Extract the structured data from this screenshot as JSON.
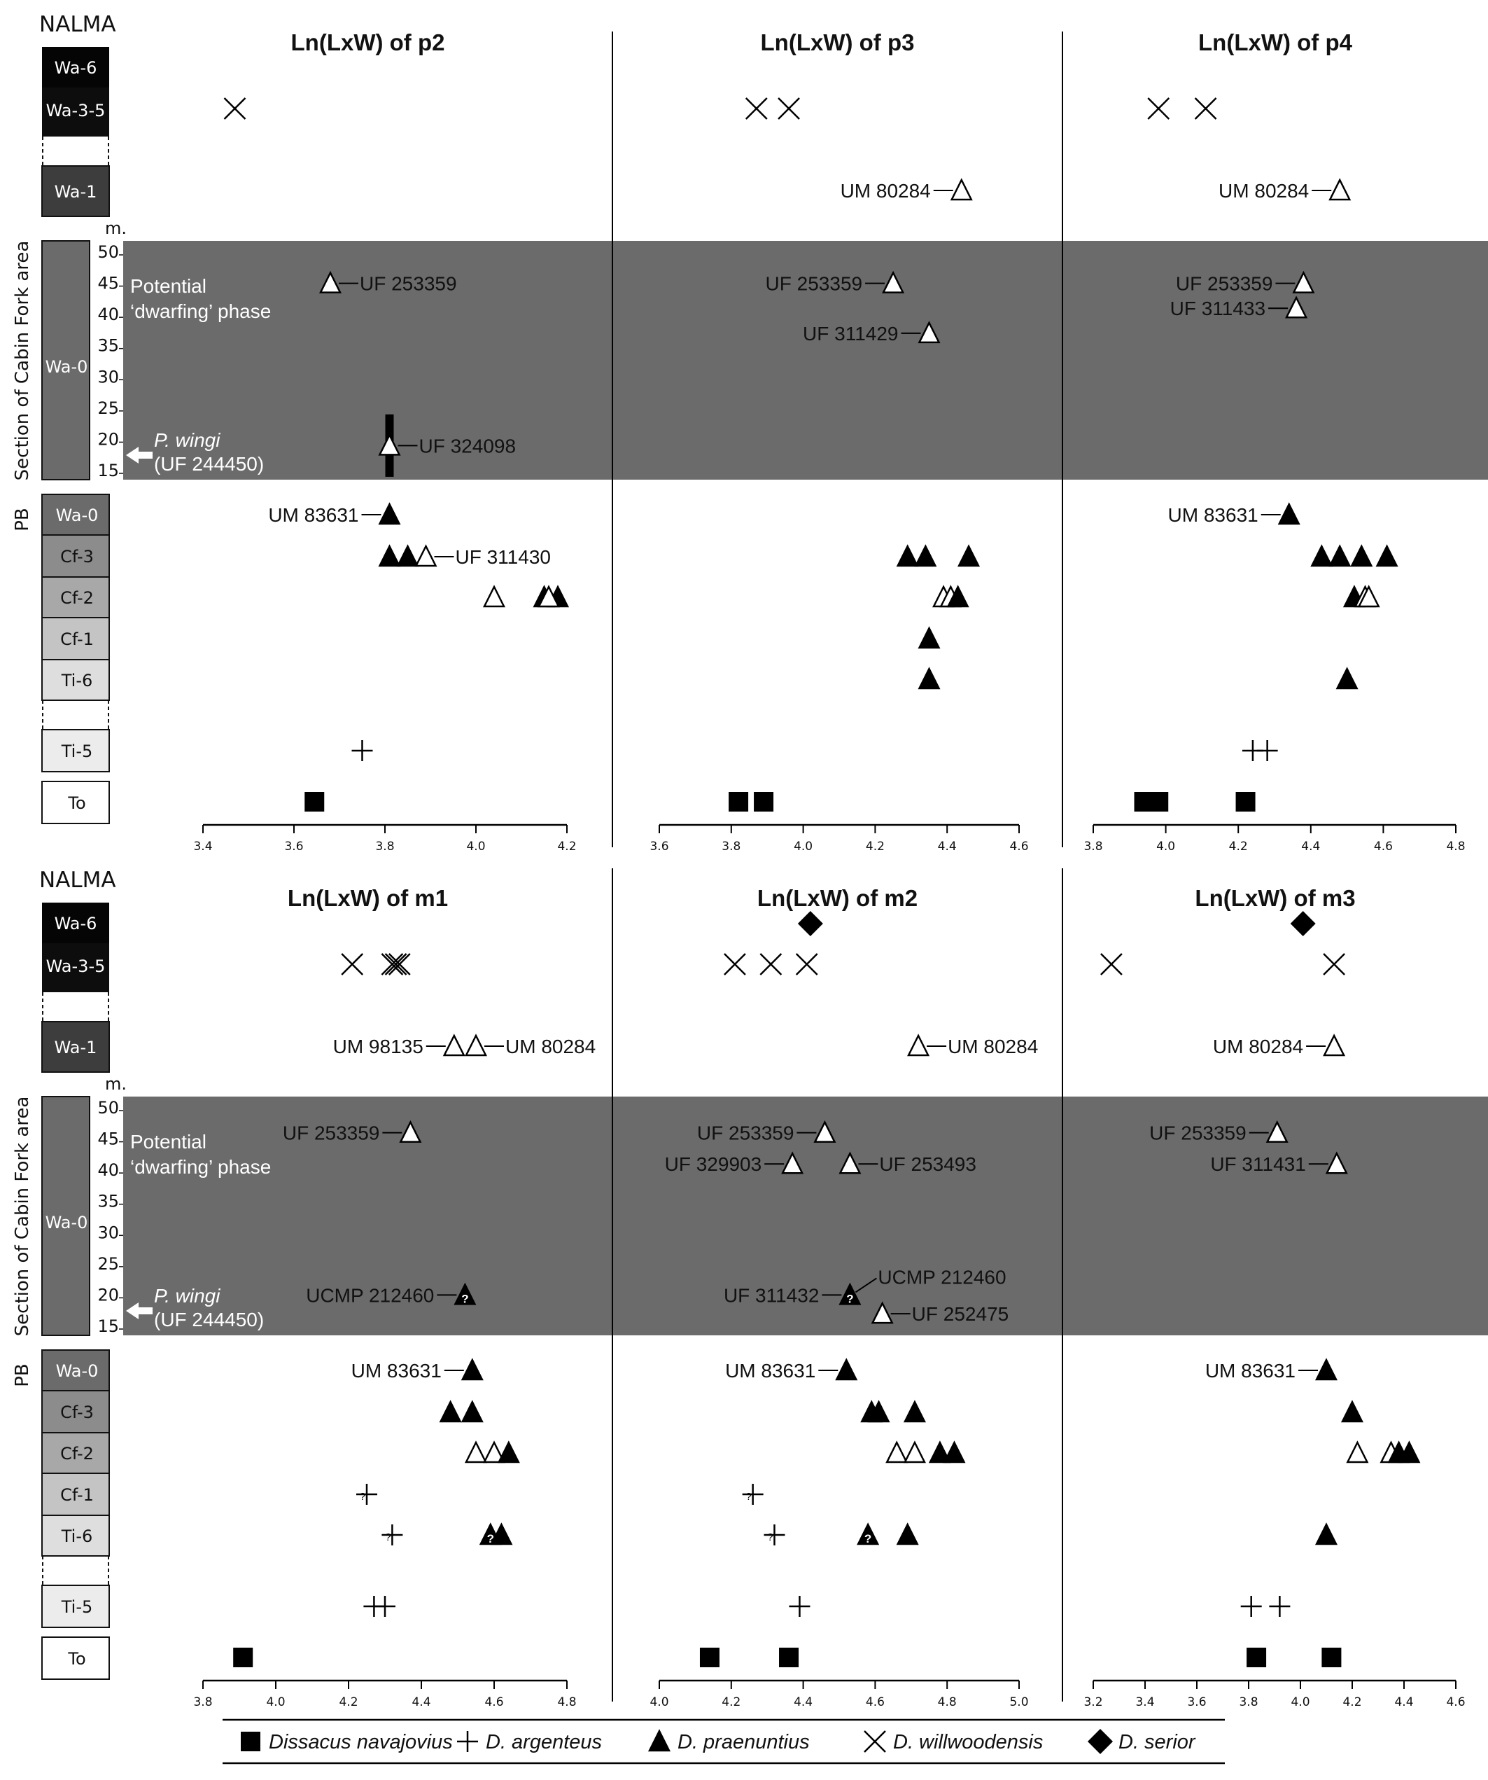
{
  "nalma_label": "NALMA",
  "section_label": "Section of Cabin Fork area",
  "pb_label": "PB",
  "meters_label": "m.",
  "dwarfing_label_1": "Potential",
  "dwarfing_label_2": "‘dwarfing’ phase",
  "pwingi_label_1": "P. wingi",
  "pwingi_label_2": "(UF 244450)",
  "colors": {
    "shade": "#6b6b6b",
    "wa6": "#050505",
    "wa35": "#0d0d0d",
    "wa1": "#3d3d3d",
    "wa0": "#6b6b6b",
    "cf3": "#8c8c8c",
    "cf2": "#a8a8a8",
    "cf1": "#c4c4c4",
    "ti6": "#dedede",
    "ti5": "#ececec",
    "to": "#ffffff"
  },
  "strat_upper": [
    {
      "key": "Wa-6",
      "label": "Wa-6"
    },
    {
      "key": "Wa-3-5",
      "label": "Wa-3-5"
    },
    {
      "key": "Wa-1",
      "label": "Wa-1"
    }
  ],
  "strat_section": {
    "label": "Wa-0",
    "meter_ticks": [
      50,
      45,
      40,
      35,
      30,
      25,
      20,
      15
    ]
  },
  "strat_pb": [
    {
      "key": "Wa-0",
      "label": "Wa-0"
    },
    {
      "key": "Cf-3",
      "label": "Cf-3"
    },
    {
      "key": "Cf-2",
      "label": "Cf-2"
    },
    {
      "key": "Cf-1",
      "label": "Cf-1"
    },
    {
      "key": "Ti-6",
      "label": "Ti-6"
    },
    {
      "key": "Ti-5",
      "label": "Ti-5"
    },
    {
      "key": "To",
      "label": "To"
    }
  ],
  "legend": [
    {
      "symbol": "square",
      "label": "Dissacus navajovius"
    },
    {
      "symbol": "plus",
      "label": "D. argenteus"
    },
    {
      "symbol": "triangle",
      "label": "D. praenuntius"
    },
    {
      "symbol": "cross",
      "label": "D. willwoodensis"
    },
    {
      "symbol": "diamond",
      "label": "D. serior"
    }
  ],
  "chart_data": [
    {
      "type": "scatter",
      "title": "Ln(LxW) of p2",
      "xlim": [
        3.4,
        4.2
      ],
      "xticks": [
        "3.4",
        "3.6",
        "3.8",
        "4.0",
        "4.2"
      ],
      "points": [
        {
          "row": "Wa-3-5",
          "x": 3.47,
          "sym": "cross"
        },
        {
          "row": "sec",
          "m": 45,
          "x": 3.68,
          "sym": "tri-open",
          "label": "UF 253359",
          "side": "right"
        },
        {
          "row": "sec",
          "m": 19,
          "x": 3.81,
          "sym": "tri-open",
          "label": "UF 324098",
          "side": "right",
          "range": [
            14,
            24
          ]
        },
        {
          "row": "Wa-0",
          "x": 3.81,
          "sym": "tri",
          "label": "UM 83631",
          "side": "left"
        },
        {
          "row": "Cf-3",
          "x": 3.81,
          "sym": "tri"
        },
        {
          "row": "Cf-3",
          "x": 3.85,
          "sym": "tri"
        },
        {
          "row": "Cf-3",
          "x": 3.89,
          "sym": "tri-open",
          "label": "UF 311430",
          "side": "right"
        },
        {
          "row": "Cf-2",
          "x": 4.04,
          "sym": "tri-open"
        },
        {
          "row": "Cf-2",
          "x": 4.15,
          "sym": "tri"
        },
        {
          "row": "Cf-2",
          "x": 4.18,
          "sym": "tri"
        },
        {
          "row": "Cf-2",
          "x": 4.16,
          "sym": "tri-open"
        },
        {
          "row": "Ti-5",
          "x": 3.75,
          "sym": "plus"
        },
        {
          "row": "To",
          "x": 3.645,
          "sym": "square"
        }
      ]
    },
    {
      "type": "scatter",
      "title": "Ln(LxW) of p3",
      "xlim": [
        3.6,
        4.6
      ],
      "xticks": [
        "3.6",
        "3.8",
        "4.0",
        "4.2",
        "4.4",
        "4.6"
      ],
      "points": [
        {
          "row": "Wa-3-5",
          "x": 3.87,
          "sym": "cross"
        },
        {
          "row": "Wa-3-5",
          "x": 3.96,
          "sym": "cross"
        },
        {
          "row": "Wa-1",
          "x": 4.44,
          "sym": "tri-open",
          "label": "UM 80284",
          "side": "left"
        },
        {
          "row": "sec",
          "m": 45,
          "x": 4.25,
          "sym": "tri-open",
          "label": "UF 253359",
          "side": "left"
        },
        {
          "row": "sec",
          "m": 37,
          "x": 4.35,
          "sym": "tri-open",
          "label": "UF 311429",
          "side": "left"
        },
        {
          "row": "Cf-3",
          "x": 4.29,
          "sym": "tri"
        },
        {
          "row": "Cf-3",
          "x": 4.34,
          "sym": "tri"
        },
        {
          "row": "Cf-3",
          "x": 4.46,
          "sym": "tri"
        },
        {
          "row": "Cf-2",
          "x": 4.39,
          "sym": "tri-open"
        },
        {
          "row": "Cf-2",
          "x": 4.41,
          "sym": "tri-open"
        },
        {
          "row": "Cf-2",
          "x": 4.43,
          "sym": "tri"
        },
        {
          "row": "Cf-1",
          "x": 4.35,
          "sym": "tri"
        },
        {
          "row": "Ti-6",
          "x": 4.35,
          "sym": "tri"
        },
        {
          "row": "To",
          "x": 3.82,
          "sym": "square"
        },
        {
          "row": "To",
          "x": 3.89,
          "sym": "square"
        }
      ]
    },
    {
      "type": "scatter",
      "title": "Ln(LxW) of p4",
      "xlim": [
        3.8,
        4.8
      ],
      "xticks": [
        "3.8",
        "4.0",
        "4.2",
        "4.4",
        "4.6",
        "4.8"
      ],
      "points": [
        {
          "row": "Wa-3-5",
          "x": 3.98,
          "sym": "cross"
        },
        {
          "row": "Wa-3-5",
          "x": 4.11,
          "sym": "cross"
        },
        {
          "row": "Wa-1",
          "x": 4.48,
          "sym": "tri-open",
          "label": "UM 80284",
          "side": "left"
        },
        {
          "row": "sec",
          "m": 45,
          "x": 4.38,
          "sym": "tri-open",
          "label": "UF 253359",
          "side": "left"
        },
        {
          "row": "sec",
          "m": 41,
          "x": 4.36,
          "sym": "tri-open",
          "label": "UF 311433",
          "side": "left"
        },
        {
          "row": "Wa-0",
          "x": 4.34,
          "sym": "tri",
          "label": "UM 83631",
          "side": "left"
        },
        {
          "row": "Cf-3",
          "x": 4.43,
          "sym": "tri"
        },
        {
          "row": "Cf-3",
          "x": 4.48,
          "sym": "tri"
        },
        {
          "row": "Cf-3",
          "x": 4.54,
          "sym": "tri"
        },
        {
          "row": "Cf-3",
          "x": 4.61,
          "sym": "tri"
        },
        {
          "row": "Cf-2",
          "x": 4.52,
          "sym": "tri"
        },
        {
          "row": "Cf-2",
          "x": 4.55,
          "sym": "tri-open"
        },
        {
          "row": "Cf-2",
          "x": 4.56,
          "sym": "tri-open"
        },
        {
          "row": "Ti-6",
          "x": 4.5,
          "sym": "tri"
        },
        {
          "row": "Ti-5",
          "x": 4.24,
          "sym": "plus"
        },
        {
          "row": "Ti-5",
          "x": 4.28,
          "sym": "plus"
        },
        {
          "row": "To",
          "x": 3.94,
          "sym": "square"
        },
        {
          "row": "To",
          "x": 3.98,
          "sym": "square"
        },
        {
          "row": "To",
          "x": 4.22,
          "sym": "square"
        }
      ]
    },
    {
      "type": "scatter",
      "title": "Ln(LxW) of m1",
      "xlim": [
        3.8,
        4.8
      ],
      "xticks": [
        "3.8",
        "4.0",
        "4.2",
        "4.4",
        "4.6",
        "4.8"
      ],
      "points": [
        {
          "row": "Wa-3-5",
          "x": 4.21,
          "sym": "cross"
        },
        {
          "row": "Wa-3-5",
          "x": 4.32,
          "sym": "cross"
        },
        {
          "row": "Wa-3-5",
          "x": 4.33,
          "sym": "cross"
        },
        {
          "row": "Wa-3-5",
          "x": 4.34,
          "sym": "cross"
        },
        {
          "row": "Wa-1",
          "x": 4.49,
          "sym": "tri-open",
          "label": "UM 98135",
          "side": "left"
        },
        {
          "row": "Wa-1",
          "x": 4.55,
          "sym": "tri-open",
          "label": "UM 80284",
          "side": "right"
        },
        {
          "row": "sec",
          "m": 46,
          "x": 4.37,
          "sym": "tri-open",
          "label": "UF 253359",
          "side": "left"
        },
        {
          "row": "sec",
          "m": 20,
          "x": 4.52,
          "sym": "tri-q",
          "label": "UCMP 212460",
          "side": "left"
        },
        {
          "row": "Wa-0",
          "x": 4.54,
          "sym": "tri",
          "label": "UM 83631",
          "side": "left"
        },
        {
          "row": "Cf-3",
          "x": 4.48,
          "sym": "tri"
        },
        {
          "row": "Cf-3",
          "x": 4.54,
          "sym": "tri"
        },
        {
          "row": "Cf-2",
          "x": 4.55,
          "sym": "tri-open"
        },
        {
          "row": "Cf-2",
          "x": 4.6,
          "sym": "tri-open"
        },
        {
          "row": "Cf-2",
          "x": 4.64,
          "sym": "tri"
        },
        {
          "row": "Cf-1",
          "x": 4.25,
          "sym": "plus-q"
        },
        {
          "row": "Ti-6",
          "x": 4.32,
          "sym": "plus-q"
        },
        {
          "row": "Ti-6",
          "x": 4.59,
          "sym": "tri-q"
        },
        {
          "row": "Ti-6",
          "x": 4.62,
          "sym": "tri"
        },
        {
          "row": "Ti-5",
          "x": 4.27,
          "sym": "plus"
        },
        {
          "row": "Ti-5",
          "x": 4.3,
          "sym": "plus"
        },
        {
          "row": "To",
          "x": 3.91,
          "sym": "square"
        }
      ]
    },
    {
      "type": "scatter",
      "title": "Ln(LxW) of m2",
      "xlim": [
        4.0,
        5.0
      ],
      "xticks": [
        "4.0",
        "4.2",
        "4.4",
        "4.6",
        "4.8",
        "5.0"
      ],
      "points": [
        {
          "row": "Wa-6",
          "x": 4.42,
          "sym": "diamond"
        },
        {
          "row": "Wa-3-5",
          "x": 4.21,
          "sym": "cross"
        },
        {
          "row": "Wa-3-5",
          "x": 4.31,
          "sym": "cross"
        },
        {
          "row": "Wa-3-5",
          "x": 4.41,
          "sym": "cross"
        },
        {
          "row": "Wa-1",
          "x": 4.72,
          "sym": "tri-open",
          "label": "UM 80284",
          "side": "right"
        },
        {
          "row": "sec",
          "m": 46,
          "x": 4.46,
          "sym": "tri-open",
          "label": "UF 253359",
          "side": "left"
        },
        {
          "row": "sec",
          "m": 41,
          "x": 4.37,
          "sym": "tri-open",
          "label": "UF 329903",
          "side": "left"
        },
        {
          "row": "sec",
          "m": 41,
          "x": 4.53,
          "sym": "tri-open",
          "label": "UF 253493",
          "side": "right"
        },
        {
          "row": "sec",
          "m": 20,
          "x": 4.53,
          "sym": "tri-q",
          "label": "UF 311432",
          "side": "left",
          "label2": "UCMP 212460"
        },
        {
          "row": "sec",
          "m": 17,
          "x": 4.62,
          "sym": "tri-open",
          "label": "UF 252475",
          "side": "right"
        },
        {
          "row": "Wa-0",
          "x": 4.52,
          "sym": "tri",
          "label": "UM 83631",
          "side": "left"
        },
        {
          "row": "Cf-3",
          "x": 4.59,
          "sym": "tri"
        },
        {
          "row": "Cf-3",
          "x": 4.61,
          "sym": "tri"
        },
        {
          "row": "Cf-3",
          "x": 4.71,
          "sym": "tri"
        },
        {
          "row": "Cf-2",
          "x": 4.66,
          "sym": "tri-open"
        },
        {
          "row": "Cf-2",
          "x": 4.71,
          "sym": "tri-open"
        },
        {
          "row": "Cf-2",
          "x": 4.78,
          "sym": "tri"
        },
        {
          "row": "Cf-2",
          "x": 4.82,
          "sym": "tri"
        },
        {
          "row": "Cf-1",
          "x": 4.26,
          "sym": "plus-q"
        },
        {
          "row": "Ti-6",
          "x": 4.32,
          "sym": "plus-q"
        },
        {
          "row": "Ti-6",
          "x": 4.58,
          "sym": "tri-q"
        },
        {
          "row": "Ti-6",
          "x": 4.69,
          "sym": "tri"
        },
        {
          "row": "Ti-5",
          "x": 4.39,
          "sym": "plus"
        },
        {
          "row": "To",
          "x": 4.14,
          "sym": "square"
        },
        {
          "row": "To",
          "x": 4.36,
          "sym": "square"
        }
      ]
    },
    {
      "type": "scatter",
      "title": "Ln(LxW) of m3",
      "xlim": [
        3.2,
        4.6
      ],
      "xticks": [
        "3.2",
        "3.4",
        "3.6",
        "3.8",
        "4.0",
        "4.2",
        "4.4",
        "4.6"
      ],
      "points": [
        {
          "row": "Wa-6",
          "x": 4.01,
          "sym": "diamond"
        },
        {
          "row": "Wa-3-5",
          "x": 3.27,
          "sym": "cross"
        },
        {
          "row": "Wa-3-5",
          "x": 4.13,
          "sym": "cross"
        },
        {
          "row": "Wa-1",
          "x": 4.13,
          "sym": "tri-open",
          "label": "UM 80284",
          "side": "left"
        },
        {
          "row": "sec",
          "m": 46,
          "x": 3.91,
          "sym": "tri-open",
          "label": "UF 253359",
          "side": "left"
        },
        {
          "row": "sec",
          "m": 41,
          "x": 4.14,
          "sym": "tri-open",
          "label": "UF 311431",
          "side": "left"
        },
        {
          "row": "Wa-0",
          "x": 4.1,
          "sym": "tri",
          "label": "UM 83631",
          "side": "left"
        },
        {
          "row": "Cf-3",
          "x": 4.2,
          "sym": "tri"
        },
        {
          "row": "Cf-2",
          "x": 4.22,
          "sym": "tri-open"
        },
        {
          "row": "Cf-2",
          "x": 4.35,
          "sym": "tri-open"
        },
        {
          "row": "Cf-2",
          "x": 4.38,
          "sym": "tri"
        },
        {
          "row": "Cf-2",
          "x": 4.42,
          "sym": "tri"
        },
        {
          "row": "Ti-6",
          "x": 4.1,
          "sym": "tri"
        },
        {
          "row": "Ti-5",
          "x": 3.81,
          "sym": "plus"
        },
        {
          "row": "Ti-5",
          "x": 3.92,
          "sym": "plus"
        },
        {
          "row": "To",
          "x": 3.83,
          "sym": "square"
        },
        {
          "row": "To",
          "x": 4.12,
          "sym": "square"
        }
      ]
    }
  ]
}
